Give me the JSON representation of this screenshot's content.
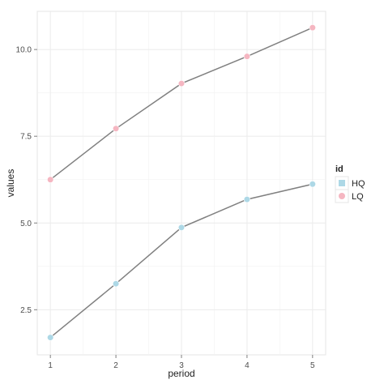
{
  "chart_data": {
    "type": "line",
    "xlabel": "period",
    "ylabel": "values",
    "x": [
      1,
      2,
      3,
      4,
      5
    ],
    "x_ticks": [
      "1",
      "2",
      "3",
      "4",
      "5"
    ],
    "y_ticks": [
      "2.5",
      "5.0",
      "7.5",
      "10.0"
    ],
    "y_tick_values": [
      2.5,
      5.0,
      7.5,
      10.0
    ],
    "xlim": [
      0.8,
      5.2
    ],
    "ylim": [
      1.2,
      11.1
    ],
    "grid": true,
    "legend": {
      "title": "id",
      "placement": "right",
      "entries": [
        "HQ",
        "LQ"
      ]
    },
    "series": [
      {
        "name": "HQ",
        "values": [
          1.7,
          3.25,
          4.87,
          5.68,
          6.12
        ],
        "color": "#add8e6"
      },
      {
        "name": "LQ",
        "values": [
          6.25,
          7.72,
          9.02,
          9.8,
          10.63
        ],
        "color": "#f5b6c1"
      }
    ],
    "line_color": "#808080"
  }
}
